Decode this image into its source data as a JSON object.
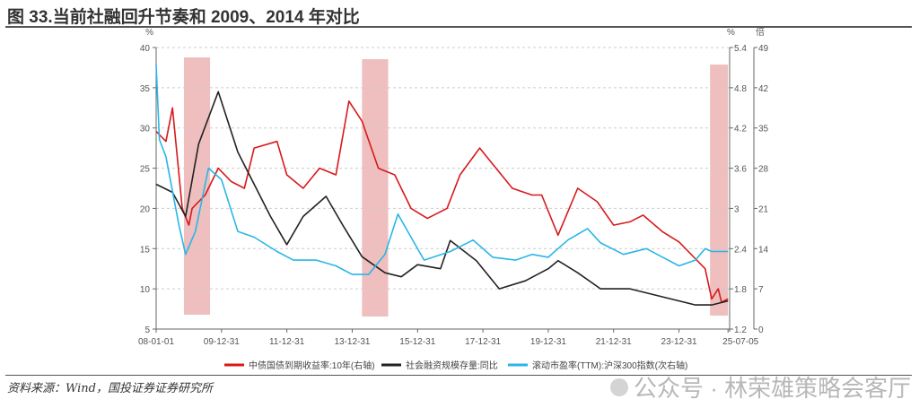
{
  "title": "图 33.当前社融回升节奏和 2009、2014 年对比",
  "source": "资料来源：Wind，国投证券证券研究所",
  "watermark": "公众号 · 林荣雄策略会客厅",
  "chart_data": {
    "type": "line",
    "title": "图 33.当前社融回升节奏和 2009、2014 年对比",
    "left_axis": {
      "unit": "%",
      "range": [
        5,
        40
      ],
      "ticks": [
        "5",
        "10",
        "15",
        "20",
        "25",
        "30",
        "35",
        "40"
      ]
    },
    "right_axis": {
      "unit": "%",
      "range": [
        1.2,
        5.4
      ],
      "ticks": [
        "1.2",
        "1.8",
        "2.4",
        "3",
        "3.6",
        "4.2",
        "4.8",
        "5.4"
      ]
    },
    "right2_axis": {
      "unit": "倍",
      "range": [
        0,
        49
      ],
      "ticks": [
        "0",
        "7",
        "14",
        "21",
        "28",
        "35",
        "42",
        "49"
      ]
    },
    "x_range": [
      2008.0,
      2025.55
    ],
    "x_ticks": [
      {
        "label": "08-01-01",
        "x": 2008.0
      },
      {
        "label": "09-12-31",
        "x": 2010.0
      },
      {
        "label": "11-12-31",
        "x": 2012.0
      },
      {
        "label": "13-12-31",
        "x": 2014.0
      },
      {
        "label": "15-12-31",
        "x": 2016.0
      },
      {
        "label": "17-12-31",
        "x": 2018.0
      },
      {
        "label": "19-12-31",
        "x": 2020.0
      },
      {
        "label": "21-12-31",
        "x": 2022.0
      },
      {
        "label": "23-12-31",
        "x": 2024.0
      },
      {
        "label": "25-07-05",
        "x": 2025.5
      }
    ],
    "shaded_periods": [
      [
        2008.85,
        2009.65
      ],
      [
        2014.3,
        2015.1
      ],
      [
        2024.95,
        2025.5
      ]
    ],
    "series": [
      {
        "name": "中债国债到期收益率:10年(右轴)",
        "axis": "right",
        "color": "#d7191c",
        "points": [
          [
            2008.0,
            4.15
          ],
          [
            2008.3,
            4.0
          ],
          [
            2008.5,
            4.5
          ],
          [
            2008.8,
            3.0
          ],
          [
            2009.0,
            2.75
          ],
          [
            2009.1,
            3.0
          ],
          [
            2009.5,
            3.2
          ],
          [
            2009.9,
            3.6
          ],
          [
            2010.3,
            3.4
          ],
          [
            2010.7,
            3.3
          ],
          [
            2011.0,
            3.9
          ],
          [
            2011.7,
            4.0
          ],
          [
            2012.0,
            3.5
          ],
          [
            2012.5,
            3.3
          ],
          [
            2013.0,
            3.6
          ],
          [
            2013.5,
            3.5
          ],
          [
            2013.9,
            4.6
          ],
          [
            2014.3,
            4.3
          ],
          [
            2014.8,
            3.6
          ],
          [
            2015.3,
            3.5
          ],
          [
            2015.8,
            3.0
          ],
          [
            2016.3,
            2.85
          ],
          [
            2016.9,
            3.0
          ],
          [
            2017.3,
            3.5
          ],
          [
            2017.9,
            3.9
          ],
          [
            2018.4,
            3.6
          ],
          [
            2018.9,
            3.3
          ],
          [
            2019.5,
            3.2
          ],
          [
            2019.8,
            3.2
          ],
          [
            2020.3,
            2.6
          ],
          [
            2020.9,
            3.3
          ],
          [
            2021.5,
            3.1
          ],
          [
            2022.0,
            2.75
          ],
          [
            2022.5,
            2.8
          ],
          [
            2022.9,
            2.9
          ],
          [
            2023.5,
            2.65
          ],
          [
            2024.0,
            2.5
          ],
          [
            2024.5,
            2.25
          ],
          [
            2024.8,
            2.1
          ],
          [
            2025.0,
            1.65
          ],
          [
            2025.2,
            1.8
          ],
          [
            2025.3,
            1.6
          ],
          [
            2025.5,
            1.65
          ]
        ]
      },
      {
        "name": "社会融资规模存量:同比",
        "axis": "left",
        "color": "#222222",
        "points": [
          [
            2008.0,
            23
          ],
          [
            2008.5,
            22
          ],
          [
            2008.9,
            19
          ],
          [
            2009.3,
            28
          ],
          [
            2009.9,
            34.5
          ],
          [
            2010.5,
            27
          ],
          [
            2011.0,
            23
          ],
          [
            2011.5,
            19
          ],
          [
            2012.0,
            15.5
          ],
          [
            2012.5,
            19
          ],
          [
            2013.2,
            21.5
          ],
          [
            2013.7,
            18
          ],
          [
            2014.3,
            14
          ],
          [
            2015.0,
            12
          ],
          [
            2015.5,
            11.5
          ],
          [
            2016.0,
            13
          ],
          [
            2016.7,
            12.5
          ],
          [
            2017.0,
            16
          ],
          [
            2017.8,
            13.5
          ],
          [
            2018.5,
            10
          ],
          [
            2019.3,
            11
          ],
          [
            2020.0,
            12.5
          ],
          [
            2020.3,
            13.5
          ],
          [
            2020.9,
            12
          ],
          [
            2021.6,
            10
          ],
          [
            2022.5,
            10
          ],
          [
            2023.5,
            9
          ],
          [
            2024.5,
            8
          ],
          [
            2025.0,
            8
          ],
          [
            2025.5,
            8.5
          ]
        ]
      },
      {
        "name": "滚动市盈率(TTM):沪深300指数(次右轴)",
        "axis": "right2",
        "color": "#29b6e8",
        "points": [
          [
            2008.0,
            46
          ],
          [
            2008.1,
            33
          ],
          [
            2008.3,
            30
          ],
          [
            2008.7,
            18
          ],
          [
            2008.9,
            13
          ],
          [
            2009.2,
            17
          ],
          [
            2009.6,
            28
          ],
          [
            2010.0,
            26
          ],
          [
            2010.5,
            17
          ],
          [
            2011.0,
            16
          ],
          [
            2011.7,
            13.5
          ],
          [
            2012.2,
            12
          ],
          [
            2012.9,
            12
          ],
          [
            2013.5,
            11
          ],
          [
            2014.0,
            9.5
          ],
          [
            2014.5,
            9.5
          ],
          [
            2015.0,
            13
          ],
          [
            2015.4,
            20
          ],
          [
            2015.9,
            15
          ],
          [
            2016.2,
            12
          ],
          [
            2017.0,
            13.5
          ],
          [
            2017.7,
            15.5
          ],
          [
            2018.3,
            12.5
          ],
          [
            2019.0,
            12
          ],
          [
            2019.5,
            13
          ],
          [
            2020.0,
            12.5
          ],
          [
            2020.6,
            15.5
          ],
          [
            2021.2,
            17.5
          ],
          [
            2021.6,
            15
          ],
          [
            2022.3,
            13
          ],
          [
            2023.0,
            14
          ],
          [
            2023.5,
            12.5
          ],
          [
            2024.0,
            11
          ],
          [
            2024.5,
            12
          ],
          [
            2024.8,
            14
          ],
          [
            2025.0,
            13.5
          ],
          [
            2025.5,
            13.5
          ]
        ]
      }
    ]
  }
}
